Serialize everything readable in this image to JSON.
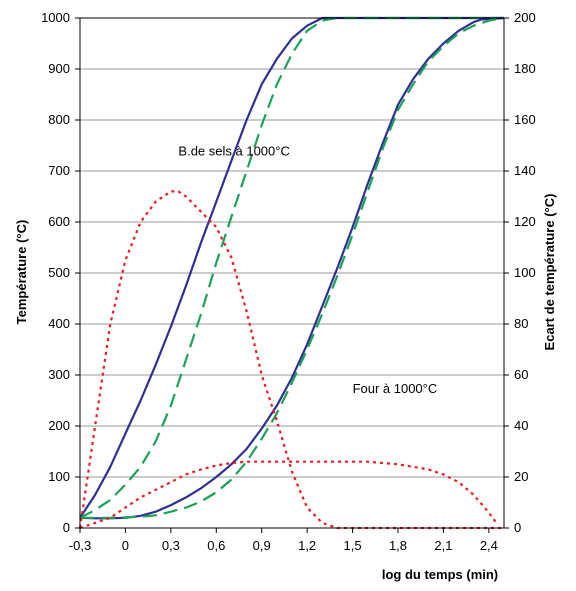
{
  "chart_data": {
    "type": "line",
    "title": "",
    "xlabel": "log du temps (min)",
    "ylabel": "Température (°C)",
    "y2label": "Ecart de température (°C)",
    "xlim": [
      -0.3,
      2.5
    ],
    "ylim": [
      0,
      1000
    ],
    "y2lim": [
      0,
      200
    ],
    "x_ticks": [
      "-0,3",
      "0",
      "0,3",
      "0,6",
      "0,9",
      "1,2",
      "1,5",
      "1,8",
      "2,1",
      "2,4"
    ],
    "x_tick_values": [
      -0.3,
      0,
      0.3,
      0.6,
      0.9,
      1.2,
      1.5,
      1.8,
      2.1,
      2.4
    ],
    "y_ticks": [
      "0",
      "100",
      "200",
      "300",
      "400",
      "500",
      "600",
      "700",
      "800",
      "900",
      "1000"
    ],
    "y2_ticks": [
      "0",
      "20",
      "40",
      "60",
      "80",
      "100",
      "120",
      "140",
      "160",
      "180",
      "200"
    ],
    "grid": "horizontal",
    "legend": "none",
    "annotations": [
      {
        "text": "B.de sels à 1000°C",
        "x": 0.35,
        "y": 730
      },
      {
        "text": "Four à 1000°C",
        "x": 1.5,
        "y": 265
      }
    ],
    "series": [
      {
        "axis": "left",
        "color": "#2e3192",
        "style": "solid",
        "x": [
          -0.3,
          -0.2,
          -0.1,
          0.0,
          0.1,
          0.2,
          0.3,
          0.4,
          0.5,
          0.6,
          0.7,
          0.8,
          0.9,
          1.0,
          1.1,
          1.2,
          1.3,
          1.35,
          1.5,
          2.5
        ],
        "y": [
          20,
          65,
          120,
          185,
          250,
          320,
          395,
          475,
          560,
          640,
          720,
          800,
          870,
          920,
          960,
          985,
          1000,
          1000,
          1000,
          1000
        ]
      },
      {
        "axis": "left",
        "color": "#1ba25a",
        "style": "dashed",
        "x": [
          -0.3,
          -0.2,
          -0.1,
          0.0,
          0.1,
          0.2,
          0.3,
          0.4,
          0.5,
          0.6,
          0.7,
          0.8,
          0.9,
          1.0,
          1.1,
          1.2,
          1.3,
          1.4,
          1.5,
          2.5
        ],
        "y": [
          20,
          35,
          55,
          85,
          120,
          170,
          240,
          330,
          420,
          520,
          610,
          700,
          790,
          870,
          930,
          975,
          995,
          1000,
          1000,
          1000
        ]
      },
      {
        "axis": "left",
        "color": "#2e3192",
        "style": "solid",
        "x": [
          -0.3,
          -0.2,
          -0.1,
          0.0,
          0.1,
          0.2,
          0.3,
          0.4,
          0.5,
          0.6,
          0.7,
          0.8,
          0.9,
          1.0,
          1.1,
          1.2,
          1.3,
          1.4,
          1.5,
          1.6,
          1.7,
          1.8,
          1.9,
          2.0,
          2.1,
          2.2,
          2.3,
          2.35,
          2.5
        ],
        "y": [
          20,
          19,
          19,
          20,
          24,
          32,
          45,
          60,
          78,
          100,
          125,
          155,
          195,
          240,
          295,
          360,
          435,
          510,
          590,
          675,
          755,
          830,
          880,
          920,
          950,
          975,
          992,
          997,
          1000
        ]
      },
      {
        "axis": "left",
        "color": "#1ba25a",
        "style": "dashed",
        "x": [
          -0.3,
          -0.2,
          -0.1,
          0.0,
          0.1,
          0.2,
          0.3,
          0.4,
          0.5,
          0.6,
          0.7,
          0.8,
          0.9,
          1.0,
          1.1,
          1.2,
          1.3,
          1.4,
          1.5,
          1.6,
          1.7,
          1.8,
          1.9,
          2.0,
          2.1,
          2.2,
          2.3,
          2.4,
          2.5
        ],
        "y": [
          20,
          20,
          20,
          21,
          22,
          25,
          32,
          40,
          52,
          70,
          95,
          130,
          175,
          225,
          285,
          350,
          420,
          495,
          575,
          660,
          745,
          820,
          870,
          915,
          945,
          970,
          985,
          995,
          1000
        ]
      },
      {
        "axis": "right",
        "color": "#ec1c24",
        "style": "dotted",
        "x": [
          -0.3,
          -0.25,
          -0.2,
          -0.1,
          0.0,
          0.1,
          0.2,
          0.3,
          0.35,
          0.4,
          0.5,
          0.6,
          0.7,
          0.8,
          0.9,
          1.0,
          1.1,
          1.2,
          1.3,
          1.35,
          1.4,
          1.5,
          2.5
        ],
        "y": [
          0,
          20,
          40,
          80,
          105,
          120,
          128,
          132,
          132,
          130,
          124,
          118,
          106,
          85,
          60,
          42,
          22,
          8,
          2,
          1,
          0,
          0,
          0
        ]
      },
      {
        "axis": "right",
        "color": "#ec1c24",
        "style": "dotted",
        "x": [
          -0.3,
          -0.2,
          -0.1,
          0.0,
          0.1,
          0.2,
          0.3,
          0.4,
          0.5,
          0.6,
          0.7,
          0.8,
          0.9,
          1.0,
          1.2,
          1.4,
          1.6,
          1.7,
          1.8,
          1.9,
          2.0,
          2.1,
          2.2,
          2.3,
          2.4,
          2.45
        ],
        "y": [
          0,
          2,
          4,
          8,
          12,
          15,
          18,
          21,
          23,
          24.5,
          25.5,
          26,
          26,
          26,
          26,
          26,
          26,
          25.5,
          25,
          24,
          23,
          21,
          18,
          13,
          6,
          2
        ]
      }
    ]
  }
}
